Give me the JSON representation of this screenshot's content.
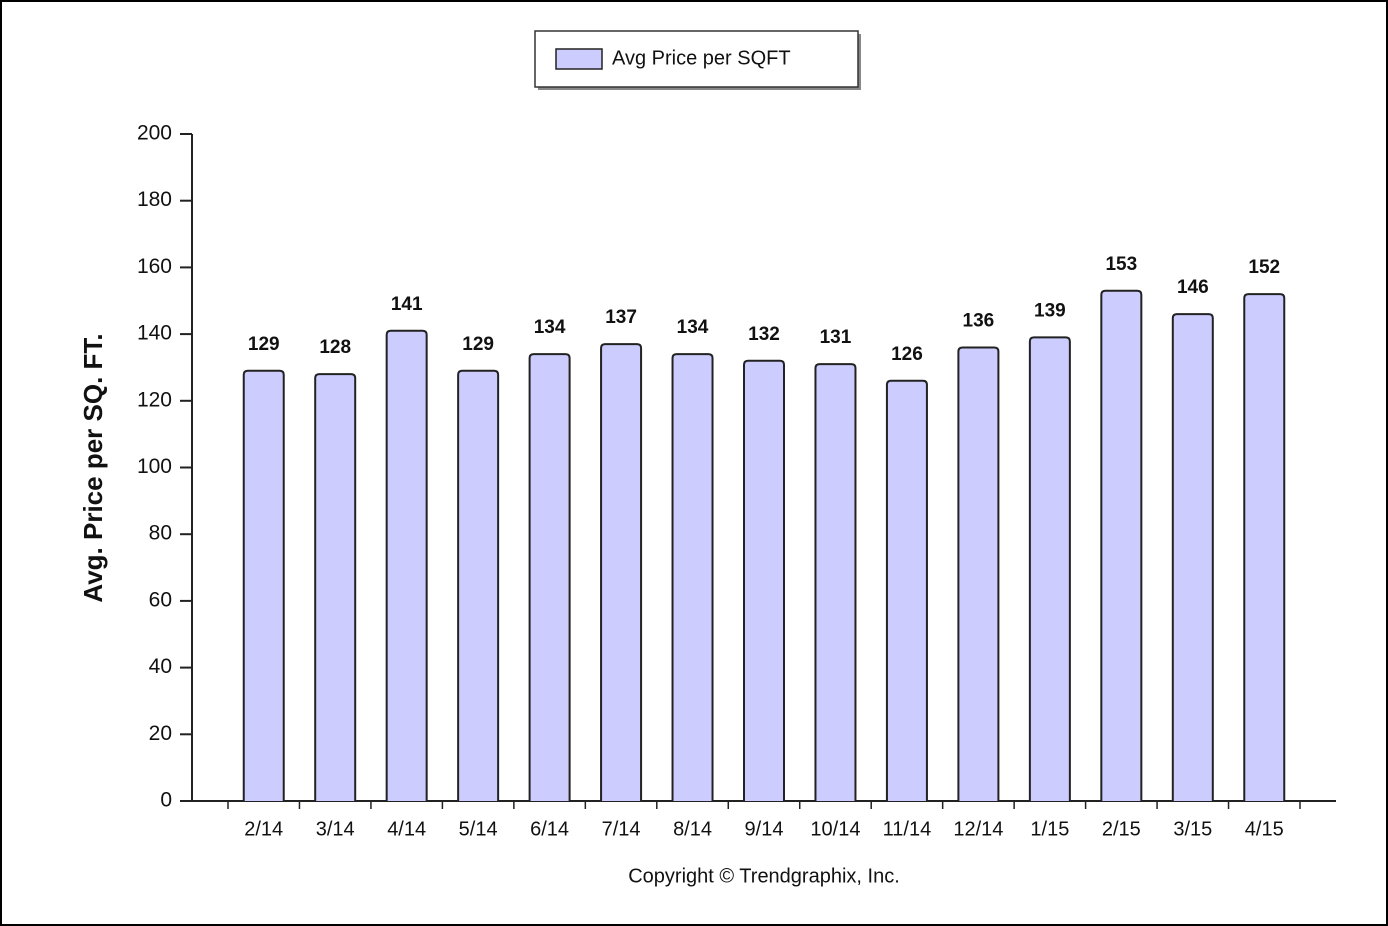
{
  "chart_data": {
    "type": "bar",
    "y_label": "Avg. Price per SQ. FT.",
    "footer": "Copyright © Trendgraphix, Inc.",
    "categories": [
      "2/14",
      "3/14",
      "4/14",
      "5/14",
      "6/14",
      "7/14",
      "8/14",
      "9/14",
      "10/14",
      "11/14",
      "12/14",
      "1/15",
      "2/15",
      "3/15",
      "4/15"
    ],
    "series": [
      {
        "name": "Avg Price per SQFT",
        "color": "#ccccff",
        "values": [
          129,
          128,
          141,
          129,
          134,
          137,
          134,
          132,
          131,
          126,
          136,
          139,
          153,
          146,
          152
        ]
      }
    ],
    "ylim": [
      0,
      200
    ],
    "yticks": [
      0,
      20,
      40,
      60,
      80,
      100,
      120,
      140,
      160,
      180,
      200
    ],
    "legend": "top"
  }
}
